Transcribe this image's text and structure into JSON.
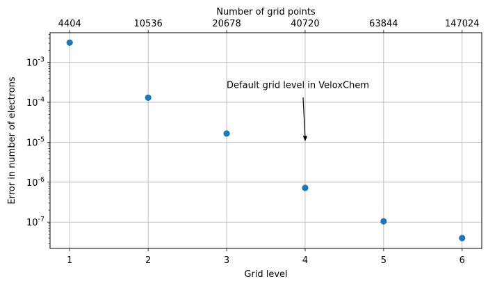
{
  "chart_data": {
    "type": "scatter",
    "xlabel": "Grid level",
    "ylabel": "Error in number of electrons",
    "x2label": "Number of grid points",
    "x": [
      1,
      2,
      3,
      4,
      5,
      6
    ],
    "y": [
      0.0031,
      0.00013,
      1.65e-05,
      7.2e-07,
      1.05e-07,
      4e-08
    ],
    "x_ticks": [
      "1",
      "2",
      "3",
      "4",
      "5",
      "6"
    ],
    "top_ticks": [
      "4404",
      "10536",
      "20678",
      "40720",
      "63844",
      "147024"
    ],
    "y_scale": "log",
    "y_ticks": [
      {
        "exp": "-3",
        "value": 0.001
      },
      {
        "exp": "-4",
        "value": 0.0001
      },
      {
        "exp": "-5",
        "value": 1e-05
      },
      {
        "exp": "-6",
        "value": 1e-06
      },
      {
        "exp": "-7",
        "value": 1e-07
      }
    ],
    "xlim": [
      0.75,
      6.25
    ],
    "ylim": [
      2.2e-08,
      0.0055
    ],
    "grid": true,
    "marker_color": "#1f77b4",
    "annotation": {
      "text": "Default grid level in VeloxChem",
      "arrow_to": {
        "x": 4,
        "y": 1.05e-05
      }
    }
  }
}
